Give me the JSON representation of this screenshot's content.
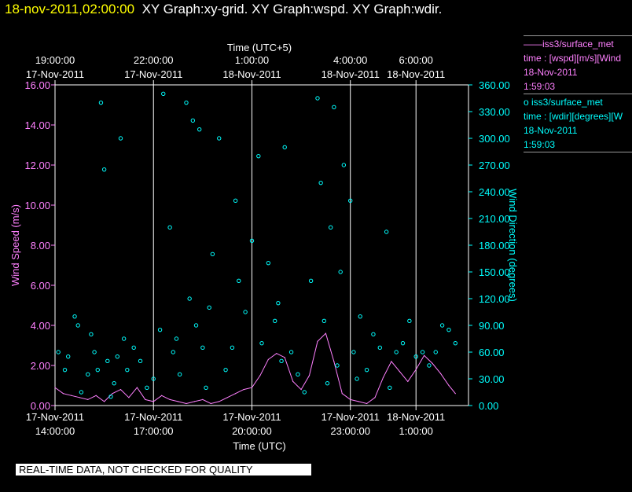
{
  "header": {
    "timestamp": "18-nov-2011,02:00:00",
    "titles": "XY Graph:xy-grid.  XY Graph:wspd.  XY Graph:wdir."
  },
  "legend": {
    "wspd": {
      "line": "——iss3/surface_met",
      "desc": "time : [wspd][m/s][Wind",
      "date": "18-Nov-2011",
      "time": "1:59:03"
    },
    "wdir": {
      "line": "o  iss3/surface_met",
      "desc": "time : [wdir][degrees][W",
      "date": "18-Nov-2011",
      "time": "1:59:03"
    }
  },
  "quality_note": "REAL-TIME DATA, NOT CHECKED FOR QUALITY",
  "colors": {
    "background": "#000000",
    "wspd": "#ff80ff",
    "wdir": "#00ffff",
    "header_timestamp": "#ffff00",
    "grid": "#ffffff"
  },
  "chart_data": {
    "type": "line",
    "x_top_label": "Time (UTC+5)",
    "x_bottom_label": "Time (UTC)",
    "y_left_label": "Wind Speed (m/s)",
    "y_right_label": "Wind Direction (degrees)",
    "xlim_hours": [
      0,
      12.6
    ],
    "y_left_lim": [
      0,
      16
    ],
    "y_right_lim": [
      0,
      360
    ],
    "y_left_ticks": [
      "0.00",
      "2.00",
      "4.00",
      "6.00",
      "8.00",
      "10.00",
      "12.00",
      "14.00",
      "16.00"
    ],
    "y_right_ticks": [
      "0.00",
      "30.00",
      "60.00",
      "90.00",
      "120.00",
      "150.00",
      "180.00",
      "210.00",
      "240.00",
      "270.00",
      "300.00",
      "330.00",
      "360.00"
    ],
    "bottom_ticks": [
      {
        "h": 0,
        "date": "17-Nov-2011",
        "time": "14:00:00"
      },
      {
        "h": 3,
        "date": "17-Nov-2011",
        "time": "17:00:00"
      },
      {
        "h": 6,
        "date": "17-Nov-2011",
        "time": "20:00:00"
      },
      {
        "h": 9,
        "date": "17-Nov-2011",
        "time": "23:00:00"
      },
      {
        "h": 11,
        "date": "18-Nov-2011",
        "time": "1:00:00"
      }
    ],
    "top_ticks": [
      {
        "h": 0,
        "time": "19:00:00",
        "date": "17-Nov-2011"
      },
      {
        "h": 3,
        "time": "22:00:00",
        "date": "17-Nov-2011"
      },
      {
        "h": 6,
        "time": "1:00:00",
        "date": "18-Nov-2011"
      },
      {
        "h": 9,
        "time": "4:00:00",
        "date": "18-Nov-2011"
      },
      {
        "h": 11,
        "time": "6:00:00",
        "date": "18-Nov-2011"
      }
    ],
    "grid_hours": [
      3,
      6,
      9,
      11
    ],
    "series": [
      {
        "name": "iss3/surface_met wspd",
        "kind": "line",
        "x_hours": [
          0,
          0.25,
          0.5,
          0.75,
          1,
          1.25,
          1.5,
          1.75,
          2,
          2.25,
          2.5,
          2.75,
          3,
          3.25,
          3.5,
          3.75,
          4,
          4.25,
          4.5,
          4.75,
          5,
          5.25,
          5.5,
          5.75,
          6,
          6.25,
          6.5,
          6.75,
          7,
          7.25,
          7.5,
          7.75,
          8,
          8.25,
          8.5,
          8.75,
          9,
          9.25,
          9.5,
          9.75,
          10,
          10.25,
          10.5,
          10.75,
          11,
          11.25,
          11.5,
          11.75,
          12,
          12.2
        ],
        "values": [
          0.9,
          0.6,
          0.5,
          0.4,
          0.3,
          0.5,
          0.2,
          0.6,
          0.8,
          0.4,
          0.9,
          0.3,
          0.2,
          0.5,
          0.3,
          0.2,
          0.1,
          0.2,
          0.3,
          0.1,
          0.2,
          0.4,
          0.6,
          0.8,
          0.9,
          1.5,
          2.3,
          2.6,
          2.4,
          1.2,
          0.8,
          1.5,
          3.2,
          3.6,
          2.2,
          0.6,
          0.3,
          0.2,
          0.1,
          0.4,
          1.4,
          2.2,
          1.7,
          1.2,
          1.8,
          2.5,
          2.1,
          1.6,
          1.0,
          0.6
        ]
      },
      {
        "name": "iss3/surface_met wdir",
        "kind": "scatter",
        "x_hours": [
          0.1,
          0.3,
          0.4,
          0.6,
          0.7,
          0.8,
          1.0,
          1.1,
          1.2,
          1.3,
          1.4,
          1.5,
          1.6,
          1.7,
          1.8,
          1.9,
          2.0,
          2.1,
          2.2,
          2.4,
          2.6,
          2.8,
          3.0,
          3.2,
          3.3,
          3.5,
          3.6,
          3.7,
          3.8,
          4.0,
          4.1,
          4.2,
          4.3,
          4.4,
          4.5,
          4.6,
          4.7,
          4.8,
          5.0,
          5.2,
          5.4,
          5.5,
          5.6,
          5.8,
          6.0,
          6.2,
          6.3,
          6.5,
          6.7,
          6.8,
          6.9,
          7.0,
          7.2,
          7.4,
          7.6,
          7.8,
          8.0,
          8.1,
          8.2,
          8.3,
          8.4,
          8.5,
          8.6,
          8.7,
          8.8,
          9.0,
          9.1,
          9.2,
          9.3,
          9.5,
          9.7,
          9.9,
          10.1,
          10.2,
          10.4,
          10.6,
          10.8,
          11.0,
          11.2,
          11.4,
          11.6,
          11.8,
          12.0,
          12.2
        ],
        "values": [
          60,
          40,
          55,
          100,
          90,
          15,
          35,
          80,
          60,
          40,
          340,
          265,
          50,
          10,
          25,
          55,
          300,
          75,
          40,
          65,
          50,
          20,
          30,
          85,
          350,
          200,
          60,
          75,
          35,
          340,
          120,
          320,
          90,
          310,
          65,
          20,
          110,
          170,
          300,
          40,
          65,
          230,
          140,
          105,
          185,
          280,
          70,
          160,
          95,
          115,
          50,
          290,
          60,
          35,
          15,
          140,
          345,
          250,
          95,
          25,
          200,
          335,
          45,
          150,
          270,
          230,
          60,
          30,
          100,
          40,
          80,
          65,
          195,
          20,
          60,
          70,
          95,
          55,
          60,
          45,
          60,
          90,
          85,
          70
        ]
      }
    ]
  }
}
